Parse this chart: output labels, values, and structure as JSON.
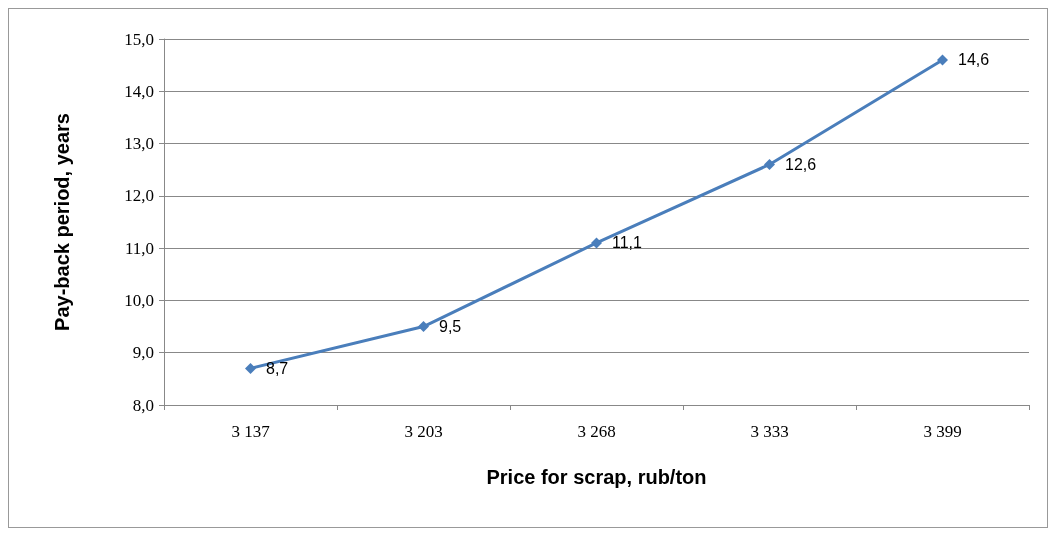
{
  "chart_data": {
    "type": "line",
    "xlabel": "Price for scrap, rub/ton",
    "ylabel": "Pay-back period, years",
    "categories": [
      "3 137",
      "3 203",
      "3 268",
      "3 333",
      "3 399"
    ],
    "series": [
      {
        "color": "#4a7ebb",
        "values": [
          8.7,
          9.5,
          11.1,
          12.6,
          14.6
        ],
        "value_labels": [
          "8,7",
          "9,5",
          "11,1",
          "12,6",
          "14,6"
        ]
      }
    ],
    "ylim": [
      8,
      15
    ],
    "yticks": [
      {
        "value": 8,
        "label": "8,0"
      },
      {
        "value": 9,
        "label": "9,0"
      },
      {
        "value": 10,
        "label": "10,0"
      },
      {
        "value": 11,
        "label": "11,0"
      },
      {
        "value": 12,
        "label": "12,0"
      },
      {
        "value": 13,
        "label": "13,0"
      },
      {
        "value": 14,
        "label": "14,0"
      },
      {
        "value": 15,
        "label": "15,0"
      }
    ],
    "grid": "y",
    "marker": "diamond",
    "line_style": "solid"
  }
}
